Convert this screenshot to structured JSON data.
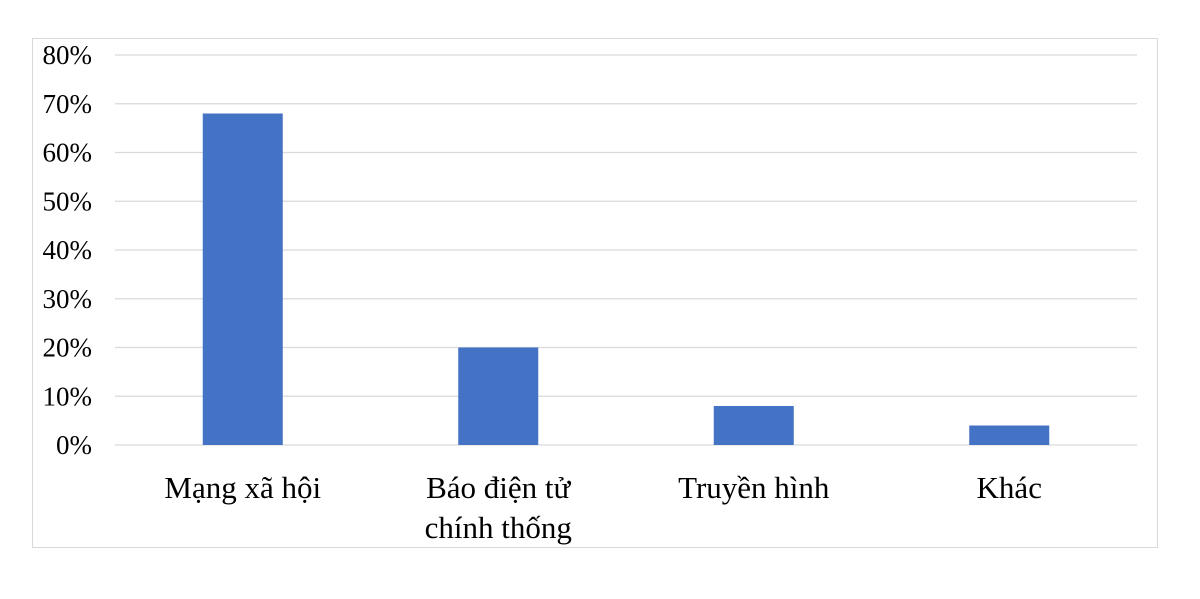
{
  "chart_data": {
    "type": "bar",
    "categories": [
      [
        "Mạng xã hội"
      ],
      [
        "Báo điện tử",
        "chính thống"
      ],
      [
        "Truyền hình"
      ],
      [
        "Khác"
      ]
    ],
    "values": [
      68,
      20,
      8,
      4
    ],
    "y_tick_labels": [
      "0%",
      "10%",
      "20%",
      "30%",
      "40%",
      "50%",
      "60%",
      "70%",
      "80%"
    ],
    "ylim": [
      0,
      80
    ],
    "y_unit": "%",
    "grid": true,
    "legend": false,
    "bar_color": "#4472c4",
    "grid_color": "#d9d9d9"
  }
}
